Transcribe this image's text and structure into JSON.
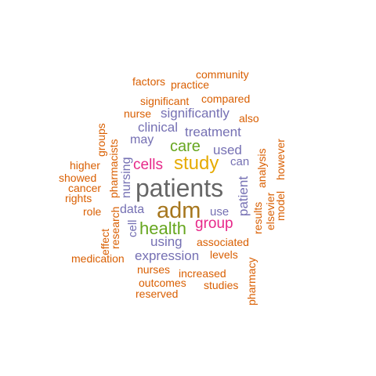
{
  "word_cloud": {
    "colors": {
      "orange": "#d95f02",
      "purple": "#7570b3",
      "pink": "#e7298a",
      "green": "#66a61e",
      "gold": "#e6ab02",
      "brown": "#a6761d",
      "gray": "#666666"
    },
    "words": {
      "patients": "patients",
      "adm": "adm",
      "study": "study",
      "health": "health",
      "care": "care",
      "cells": "cells",
      "group": "group",
      "treatment": "treatment",
      "significantly": "significantly",
      "clinical": "clinical",
      "may": "may",
      "used": "used",
      "can": "can",
      "use": "use",
      "data": "data",
      "nursing": "nursing",
      "patient": "patient",
      "cell": "cell",
      "using": "using",
      "expression": "expression",
      "community": "community",
      "factors": "factors",
      "practice": "practice",
      "significant": "significant",
      "compared": "compared",
      "nurse": "nurse",
      "also": "also",
      "groups": "groups",
      "pharmacists": "pharmacists",
      "higher": "higher",
      "showed": "showed",
      "cancer": "cancer",
      "rights": "rights",
      "role": "role",
      "research": "research",
      "effect": "effect",
      "analysis": "analysis",
      "however": "however",
      "model": "model",
      "elsevier": "elsevier",
      "results": "results",
      "associated": "associated",
      "levels": "levels",
      "medication": "medication",
      "nurses": "nurses",
      "increased": "increased",
      "outcomes": "outcomes",
      "studies": "studies",
      "reserved": "reserved",
      "pharmacy": "pharmacy"
    }
  }
}
